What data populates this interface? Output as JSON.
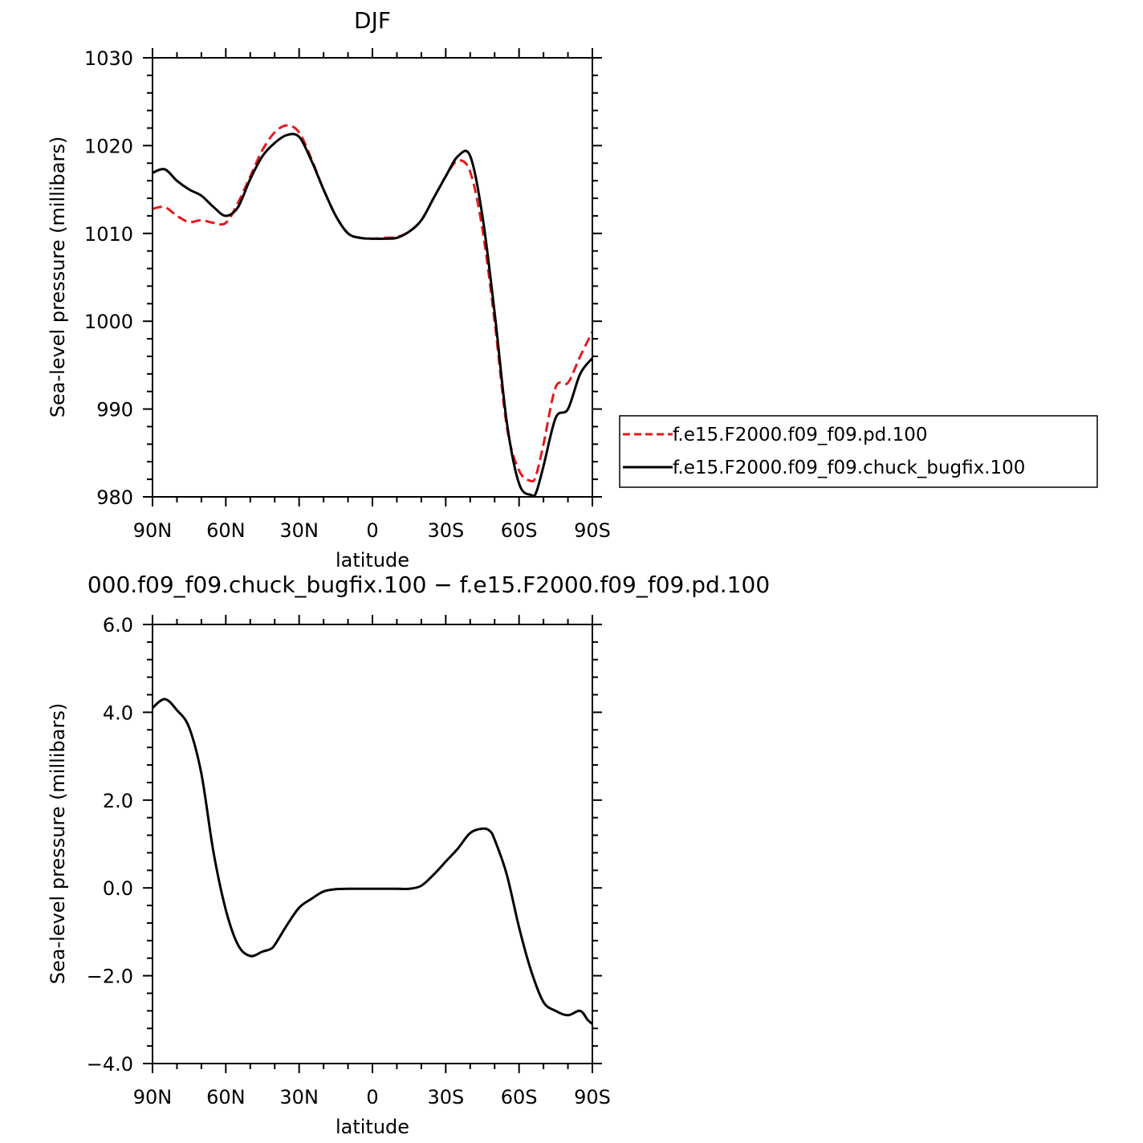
{
  "chart_data": [
    {
      "type": "line",
      "title": "DJF",
      "xlabel": "latitude",
      "ylabel": "Sea-level pressure (millibars)",
      "xlim": [
        90,
        -90
      ],
      "ylim": [
        980,
        1030
      ],
      "x_tick_values": [
        90,
        60,
        30,
        0,
        -30,
        -60,
        -90
      ],
      "x_tick_labels": [
        "90N",
        "60N",
        "30N",
        "0",
        "30S",
        "60S",
        "90S"
      ],
      "y_tick_values": [
        980,
        990,
        1000,
        1010,
        1020,
        1030
      ],
      "y_tick_labels": [
        "980",
        "990",
        "1000",
        "1010",
        "1020",
        "1030"
      ],
      "legend_placement": "right",
      "x": [
        90,
        85,
        80,
        75,
        70,
        65,
        60,
        55,
        50,
        45,
        40,
        35,
        30,
        25,
        20,
        15,
        10,
        5,
        0,
        -5,
        -10,
        -15,
        -20,
        -25,
        -30,
        -35,
        -40,
        -45,
        -50,
        -55,
        -60,
        -65,
        -67,
        -70,
        -75,
        -80,
        -85,
        -90
      ],
      "series": [
        {
          "name": "f.e15.F2000.f09_f09.pd.100",
          "color": "#e41a1c",
          "dash": "dashed",
          "values": [
            1012.8,
            1013.0,
            1012.0,
            1011.3,
            1011.5,
            1011.2,
            1011.2,
            1013.5,
            1016.5,
            1019.5,
            1021.5,
            1022.3,
            1021.5,
            1018.5,
            1015.0,
            1012.0,
            1010.0,
            1009.5,
            1009.4,
            1009.5,
            1009.6,
            1010.2,
            1011.5,
            1014.0,
            1016.5,
            1018.3,
            1017.0,
            1010.5,
            1000.0,
            988.0,
            983.0,
            981.8,
            982.5,
            986.0,
            992.5,
            993.0,
            996.0,
            998.8
          ]
        },
        {
          "name": "f.e15.F2000.f09_f09.chuck_bugfix.100",
          "color": "#000000",
          "dash": "solid",
          "values": [
            1016.9,
            1017.3,
            1016.0,
            1015.0,
            1014.3,
            1013.0,
            1012.0,
            1013.0,
            1016.2,
            1018.8,
            1020.3,
            1021.2,
            1021.0,
            1018.3,
            1015.0,
            1012.0,
            1010.0,
            1009.5,
            1009.4,
            1009.4,
            1009.5,
            1010.2,
            1011.5,
            1014.0,
            1016.5,
            1018.8,
            1018.8,
            1012.0,
            1001.0,
            988.5,
            981.5,
            980.2,
            980.5,
            983.5,
            989.0,
            990.0,
            994.0,
            995.8
          ]
        }
      ]
    },
    {
      "type": "line",
      "title": "000.f09_f09.chuck_bugfix.100 − f.e15.F2000.f09_f09.pd.100",
      "xlabel": "latitude",
      "ylabel": "Sea-level pressure (millibars)",
      "xlim": [
        90,
        -90
      ],
      "ylim": [
        -4.0,
        6.0
      ],
      "x_tick_values": [
        90,
        60,
        30,
        0,
        -30,
        -60,
        -90
      ],
      "x_tick_labels": [
        "90N",
        "60N",
        "30N",
        "0",
        "30S",
        "60S",
        "90S"
      ],
      "y_tick_values": [
        -4.0,
        -2.0,
        0.0,
        2.0,
        4.0,
        6.0
      ],
      "y_tick_labels": [
        "−4.0",
        "−2.0",
        "0.0",
        "2.0",
        "4.0",
        "6.0"
      ],
      "x": [
        90,
        85,
        80,
        75,
        70,
        65,
        60,
        55,
        50,
        45,
        42,
        40,
        35,
        30,
        25,
        20,
        15,
        10,
        5,
        0,
        -5,
        -10,
        -15,
        -20,
        -25,
        -30,
        -35,
        -40,
        -45,
        -48,
        -50,
        -55,
        -60,
        -65,
        -70,
        -75,
        -80,
        -85,
        -88,
        -90
      ],
      "series": [
        {
          "color": "#000000",
          "dash": "solid",
          "values": [
            4.1,
            4.3,
            4.05,
            3.65,
            2.6,
            0.8,
            -0.5,
            -1.3,
            -1.55,
            -1.45,
            -1.4,
            -1.3,
            -0.85,
            -0.45,
            -0.25,
            -0.08,
            -0.03,
            -0.02,
            -0.02,
            -0.02,
            -0.02,
            -0.02,
            -0.02,
            0.05,
            0.3,
            0.6,
            0.9,
            1.25,
            1.35,
            1.3,
            1.1,
            0.3,
            -0.9,
            -1.9,
            -2.6,
            -2.8,
            -2.9,
            -2.8,
            -3.0,
            -3.1
          ]
        }
      ]
    }
  ]
}
